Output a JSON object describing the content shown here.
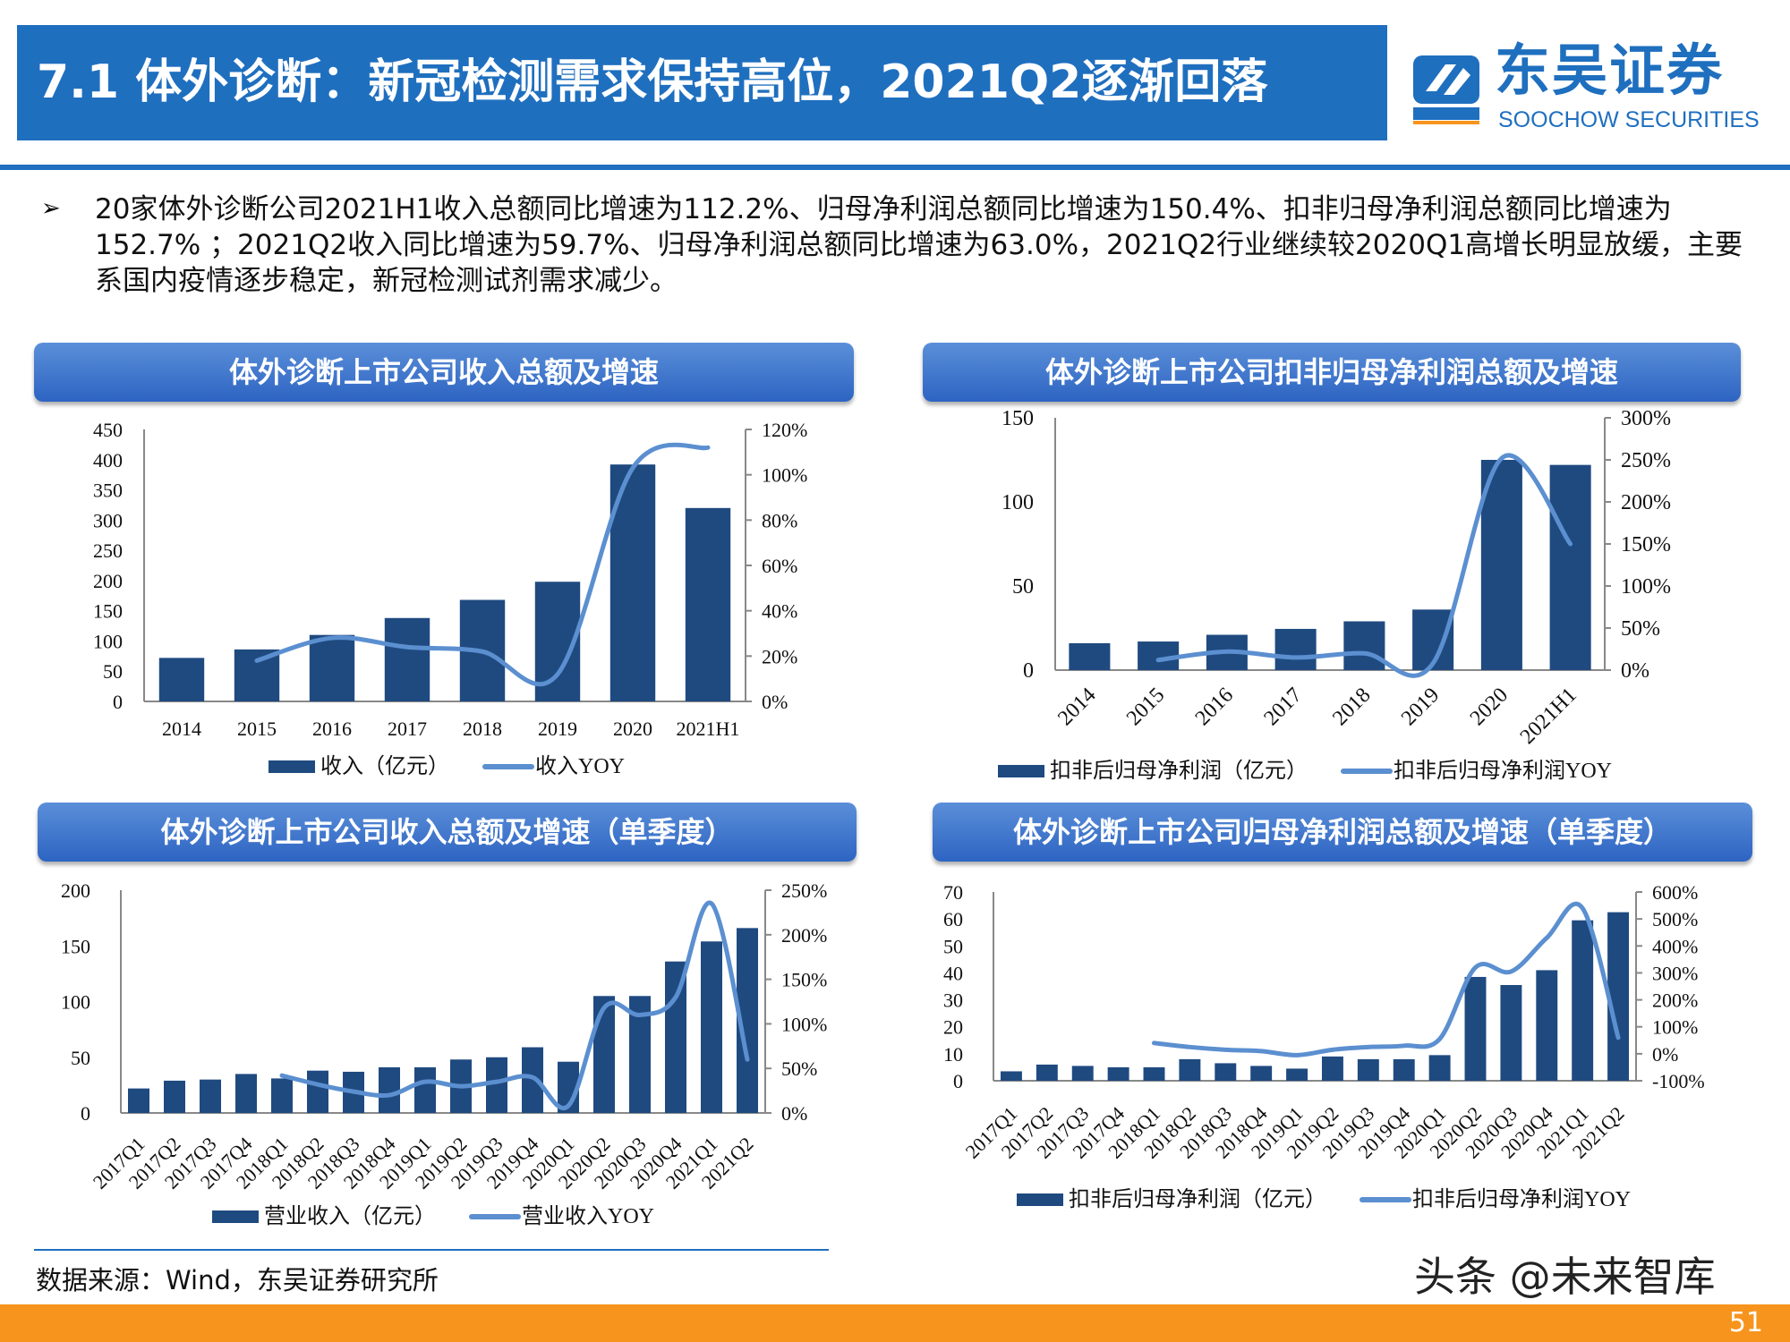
{
  "header": {
    "title": "7.1 体外诊断：新冠检测需求保持高位，2021Q2逐渐回落",
    "logo_cn": "东吴证券",
    "logo_en": "SOOCHOW SECURITIES",
    "logo_mark": "SCS"
  },
  "bullet": {
    "icon": "arrow-bullet-icon",
    "symbol": "➢",
    "text": "20家体外诊断公司2021H1收入总额同比增速为112.2%、归母净利润总额同比增速为150.4%、扣非归母净利润总额同比增速为152.7% ；2021Q2收入同比增速为59.7%、归母净利润总额同比增速为63.0%，2021Q2行业继续较2020Q1高增长明显放缓，主要系国内疫情逐步稳定，新冠检测试剂需求减少。"
  },
  "colors": {
    "brand": "#1f6fbf",
    "bar": "#1f4a80",
    "line": "#5b8fd0",
    "footer": "#f7941d"
  },
  "chart_data": [
    {
      "type": "bar+line",
      "title": "体外诊断上市公司收入总额及增速",
      "categories": [
        "2014",
        "2015",
        "2016",
        "2017",
        "2018",
        "2019",
        "2020",
        "2021H1"
      ],
      "series": [
        {
          "name": "收入（亿元）",
          "type": "bar",
          "axis": "left",
          "values": [
            72,
            86,
            110,
            138,
            168,
            198,
            392,
            320
          ]
        },
        {
          "name": "收入YOY",
          "type": "line",
          "axis": "right",
          "values": [
            null,
            18,
            28,
            24,
            22,
            12,
            103,
            112
          ]
        }
      ],
      "ylim": [
        0,
        450
      ],
      "yticks": [
        "0",
        "50",
        "100",
        "150",
        "200",
        "250",
        "300",
        "350",
        "400",
        "450"
      ],
      "y2lim": [
        0,
        120
      ],
      "y2ticks": [
        "0%",
        "20%",
        "40%",
        "60%",
        "80%",
        "100%",
        "120%"
      ],
      "legend": "bottom"
    },
    {
      "type": "bar+line",
      "title": "体外诊断上市公司扣非归母净利润总额及增速",
      "categories": [
        "2014",
        "2015",
        "2016",
        "2017",
        "2018",
        "2019",
        "2020",
        "2021H1"
      ],
      "series": [
        {
          "name": "扣非后归母净利润（亿元）",
          "type": "bar",
          "axis": "left",
          "values": [
            16,
            17,
            21,
            24.5,
            29,
            36,
            125,
            122
          ]
        },
        {
          "name": "扣非后归母净利润YOY",
          "type": "line",
          "axis": "right",
          "values": [
            null,
            12,
            22,
            15,
            20,
            8,
            252,
            150
          ]
        }
      ],
      "ylim": [
        0,
        150
      ],
      "yticks": [
        "0",
        "50",
        "100",
        "150"
      ],
      "y2lim": [
        0,
        300
      ],
      "y2ticks": [
        "0%",
        "50%",
        "100%",
        "150%",
        "200%",
        "250%",
        "300%"
      ],
      "legend": "bottom"
    },
    {
      "type": "bar+line",
      "title": "体外诊断上市公司收入总额及增速（单季度）",
      "categories": [
        "2017Q1",
        "2017Q2",
        "2017Q3",
        "2017Q4",
        "2018Q1",
        "2018Q2",
        "2018Q3",
        "2018Q4",
        "2019Q1",
        "2019Q2",
        "2019Q3",
        "2019Q4",
        "2020Q1",
        "2020Q2",
        "2020Q3",
        "2020Q4",
        "2021Q1",
        "2021Q2"
      ],
      "series": [
        {
          "name": "营业收入（亿元）",
          "type": "bar",
          "axis": "left",
          "values": [
            22,
            29,
            30,
            35,
            31,
            38,
            37,
            41,
            41,
            48,
            50,
            59,
            46,
            105,
            105,
            136,
            154,
            166
          ]
        },
        {
          "name": "营业收入YOY",
          "type": "line",
          "axis": "right",
          "values": [
            null,
            null,
            null,
            null,
            42,
            32,
            24,
            20,
            35,
            30,
            35,
            40,
            8,
            118,
            110,
            130,
            235,
            60
          ]
        }
      ],
      "ylim": [
        0,
        200
      ],
      "yticks": [
        "0",
        "50",
        "100",
        "150",
        "200"
      ],
      "y2lim": [
        0,
        250
      ],
      "y2ticks": [
        "0%",
        "50%",
        "100%",
        "150%",
        "200%",
        "250%"
      ],
      "legend": "bottom"
    },
    {
      "type": "bar+line",
      "title": "体外诊断上市公司归母净利润总额及增速（单季度）",
      "categories": [
        "2017Q1",
        "2017Q2",
        "2017Q3",
        "2017Q4",
        "2018Q1",
        "2018Q2",
        "2018Q3",
        "2018Q4",
        "2019Q1",
        "2019Q2",
        "2019Q3",
        "2019Q4",
        "2020Q1",
        "2020Q2",
        "2020Q3",
        "2020Q4",
        "2021Q1",
        "2021Q2"
      ],
      "series": [
        {
          "name": "扣非后归母净利润（亿元）",
          "type": "bar",
          "axis": "left",
          "values": [
            3.5,
            6,
            5.5,
            5,
            5,
            8,
            6.5,
            5.5,
            4.5,
            9,
            8,
            8,
            9.5,
            38.5,
            35.5,
            41,
            59.5,
            62.5
          ]
        },
        {
          "name": "扣非后归母净利润YOY",
          "type": "line",
          "axis": "right",
          "values": [
            null,
            null,
            null,
            null,
            40,
            25,
            15,
            10,
            -5,
            15,
            25,
            30,
            55,
            320,
            305,
            430,
            540,
            60
          ]
        }
      ],
      "ylim": [
        0,
        70
      ],
      "yticks": [
        "0",
        "10",
        "20",
        "30",
        "40",
        "50",
        "60",
        "70"
      ],
      "y2lim": [
        -100,
        600
      ],
      "y2ticks": [
        "-100%",
        "0%",
        "100%",
        "200%",
        "300%",
        "400%",
        "500%",
        "600%"
      ],
      "legend": "bottom"
    }
  ],
  "footer": {
    "source": "数据来源：Wind，东吴证券研究所",
    "watermark": "头条 @未来智库",
    "page": "51"
  }
}
